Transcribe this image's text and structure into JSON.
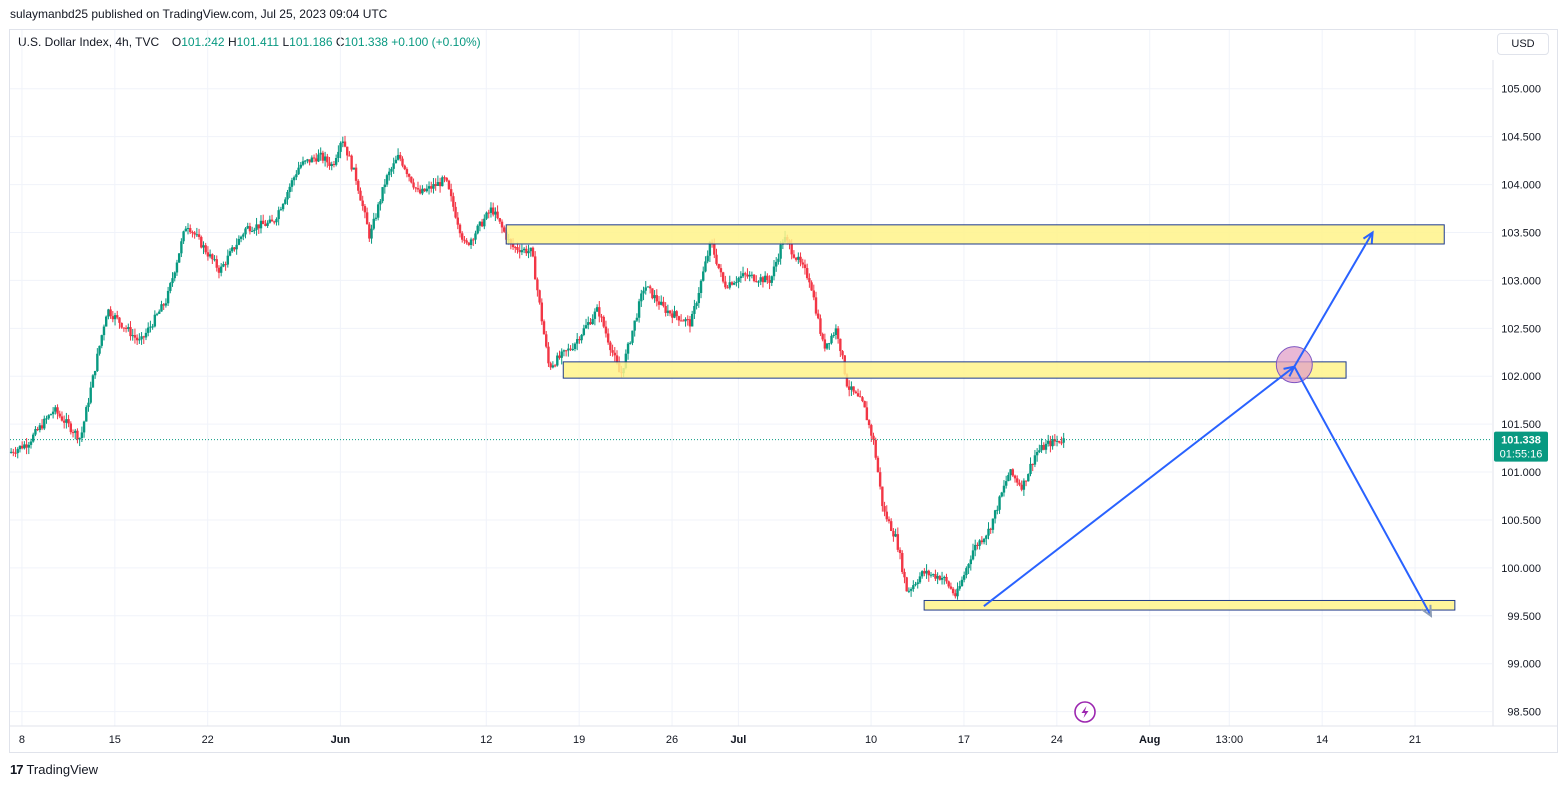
{
  "header": {
    "publisher": "sulaymanbd25 published on TradingView.com, Jul 25, 2023 09:04 UTC"
  },
  "legend": {
    "symbol": "U.S. Dollar Index, 4h, TVC",
    "o_label": "O",
    "o_value": "101.242",
    "h_label": "H",
    "h_value": "101.411",
    "l_label": "L",
    "l_value": "101.186",
    "c_label": "C",
    "c_value": "101.338",
    "change": "+0.100 (+0.10%)"
  },
  "currency_button": "USD",
  "footer": {
    "brand": "TradingView",
    "logo": "17"
  },
  "colors": {
    "up": "#089981",
    "down": "#f23645",
    "zone_fill": "#fff38a",
    "zone_border": "#1e3a8a",
    "arrow": "#2962ff",
    "circle": "#e1a0c8",
    "price_line": "#089981",
    "badge": "#089981",
    "icon": "#9c27b0"
  },
  "chart_data": {
    "type": "candlestick",
    "symbol": "U.S. Dollar Index",
    "timeframe": "4h",
    "y_axis": {
      "ticks": [
        105.0,
        104.5,
        104.0,
        103.5,
        103.0,
        102.5,
        102.0,
        101.5,
        101.0,
        100.5,
        100.0,
        99.5,
        99.0,
        98.5
      ],
      "tick_labels": [
        "105.000",
        "104.500",
        "104.000",
        "103.500",
        "103.000",
        "102.500",
        "102.000",
        "101.500",
        "101.000",
        "100.500",
        "100.000",
        "99.500",
        "99.000",
        "98.500"
      ],
      "range": [
        98.35,
        105.3
      ]
    },
    "x_axis": {
      "tick_labels": [
        "8",
        "15",
        "22",
        "Jun",
        "12",
        "19",
        "26",
        "Jul",
        "10",
        "17",
        "24",
        "Aug",
        "13:00",
        "14",
        "21"
      ],
      "tick_days": [
        8,
        15,
        22,
        32,
        43,
        50,
        57,
        62,
        72,
        79,
        86,
        93,
        99,
        106,
        113
      ],
      "date_origin": "2023-05-01",
      "range_days": [
        7.1,
        118.8
      ]
    },
    "last_price": {
      "value": 101.338,
      "label": "101.338",
      "countdown": "01:55:16"
    },
    "path": [
      {
        "day": 7.1,
        "price": 101.2
      },
      {
        "day": 8.5,
        "price": 101.3
      },
      {
        "day": 10.5,
        "price": 101.65
      },
      {
        "day": 12.5,
        "price": 101.35
      },
      {
        "day": 14.5,
        "price": 102.7
      },
      {
        "day": 17,
        "price": 102.35
      },
      {
        "day": 19,
        "price": 102.8
      },
      {
        "day": 20.5,
        "price": 103.6
      },
      {
        "day": 23,
        "price": 103.1
      },
      {
        "day": 25,
        "price": 103.55
      },
      {
        "day": 27,
        "price": 103.6
      },
      {
        "day": 29,
        "price": 104.2
      },
      {
        "day": 30.5,
        "price": 104.3
      },
      {
        "day": 31.5,
        "price": 104.2
      },
      {
        "day": 32.2,
        "price": 104.5
      },
      {
        "day": 33.3,
        "price": 104.05
      },
      {
        "day": 34.3,
        "price": 103.45
      },
      {
        "day": 35.5,
        "price": 104.05
      },
      {
        "day": 36.5,
        "price": 104.3
      },
      {
        "day": 38,
        "price": 103.9
      },
      {
        "day": 40,
        "price": 104.05
      },
      {
        "day": 41.5,
        "price": 103.35
      },
      {
        "day": 43.5,
        "price": 103.75
      },
      {
        "day": 45,
        "price": 103.35
      },
      {
        "day": 46.5,
        "price": 103.3
      },
      {
        "day": 47.8,
        "price": 102.1
      },
      {
        "day": 49.5,
        "price": 102.3
      },
      {
        "day": 51.5,
        "price": 102.7
      },
      {
        "day": 53.2,
        "price": 102.0
      },
      {
        "day": 55,
        "price": 102.95
      },
      {
        "day": 56.5,
        "price": 102.7
      },
      {
        "day": 58.5,
        "price": 102.55
      },
      {
        "day": 60,
        "price": 103.4
      },
      {
        "day": 61,
        "price": 102.95
      },
      {
        "day": 62.5,
        "price": 103.05
      },
      {
        "day": 64.5,
        "price": 103.0
      },
      {
        "day": 65.5,
        "price": 103.45
      },
      {
        "day": 67.5,
        "price": 103.0
      },
      {
        "day": 68.5,
        "price": 102.3
      },
      {
        "day": 69.5,
        "price": 102.5
      },
      {
        "day": 70.3,
        "price": 101.9
      },
      {
        "day": 71.5,
        "price": 101.7
      },
      {
        "day": 72.3,
        "price": 101.3
      },
      {
        "day": 73,
        "price": 100.6
      },
      {
        "day": 74,
        "price": 100.3
      },
      {
        "day": 74.8,
        "price": 99.75
      },
      {
        "day": 76,
        "price": 99.95
      },
      {
        "day": 77.5,
        "price": 99.9
      },
      {
        "day": 78.5,
        "price": 99.7
      },
      {
        "day": 79.8,
        "price": 100.2
      },
      {
        "day": 81,
        "price": 100.4
      },
      {
        "day": 82.5,
        "price": 101.0
      },
      {
        "day": 83.5,
        "price": 100.85
      },
      {
        "day": 84.5,
        "price": 101.2
      },
      {
        "day": 85.5,
        "price": 101.3
      },
      {
        "day": 86.5,
        "price": 101.338
      }
    ],
    "annotations": {
      "zones": [
        {
          "day_start": 44.5,
          "day_end": 115.2,
          "price_low": 103.38,
          "price_high": 103.58
        },
        {
          "day_start": 48.8,
          "day_end": 107.8,
          "price_low": 101.98,
          "price_high": 102.15
        },
        {
          "day_start": 76.0,
          "day_end": 116.0,
          "price_low": 99.56,
          "price_high": 99.66
        }
      ],
      "arrows": [
        {
          "from_day": 80.5,
          "from_price": 99.6,
          "to_day": 103.9,
          "to_price": 102.1
        },
        {
          "from_day": 103.9,
          "from_price": 102.1,
          "to_day": 109.8,
          "to_price": 103.5
        },
        {
          "from_day": 103.9,
          "from_price": 102.1,
          "to_day": 114.2,
          "to_price": 99.5
        }
      ],
      "circle": {
        "day": 103.9,
        "price": 102.1
      }
    }
  }
}
